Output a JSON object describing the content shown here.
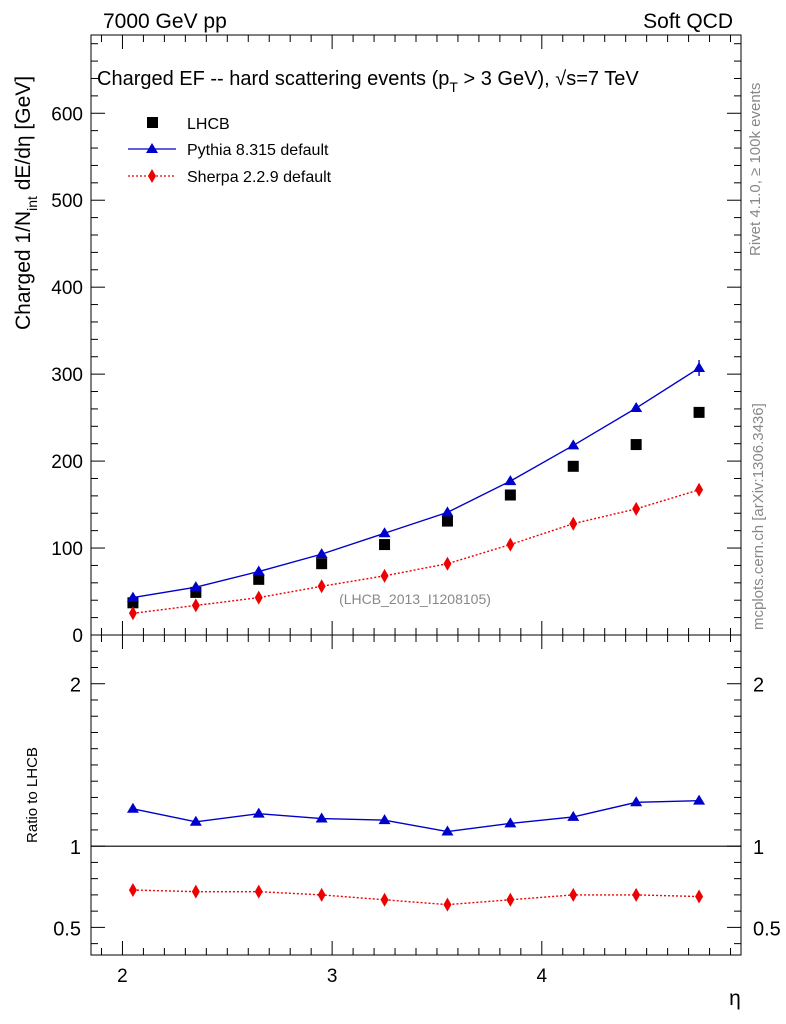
{
  "header": {
    "left": "7000 GeV pp",
    "right": "Soft QCD"
  },
  "side_labels": {
    "rivet": "Rivet 4.1.0, ≥ 100k events",
    "mcplots": "mcplots.cern.ch [arXiv:1306.3436]"
  },
  "colors": {
    "data": "#000000",
    "pythia": "#0000cc",
    "sherpa": "#ee0000",
    "watermark": "#888888"
  },
  "chart_data": [
    {
      "type": "scatter",
      "panel": "main",
      "title": "Charged EF -- hard scattering events (p",
      "title_subscript": "T",
      "title_tail": " > 3 GeV), √s=7 TeV",
      "watermark": "(LHCB_2013_I1208105)",
      "ylabel": "Charged 1/N",
      "ylabel_sub": "int",
      "ylabel_tail": "  dE/dη [GeV]",
      "xlabel": "η",
      "xlim": [
        1.85,
        4.95
      ],
      "ylim": [
        0,
        690
      ],
      "yticks": [
        0,
        100,
        200,
        300,
        400,
        500,
        600
      ],
      "xticks": [
        2,
        3,
        4
      ],
      "x": [
        2.05,
        2.35,
        2.65,
        2.95,
        3.25,
        3.55,
        3.85,
        4.15,
        4.45,
        4.75
      ],
      "series": [
        {
          "name": "LHCB",
          "key": "data",
          "style": "markers",
          "marker": "square",
          "values": [
            37,
            49,
            64,
            82,
            104,
            131,
            161,
            194,
            219,
            256
          ]
        },
        {
          "name": "Pythia 8.315 default",
          "key": "pythia",
          "style": "solid-line",
          "marker": "triangle",
          "values": [
            43,
            55,
            73,
            93,
            117,
            141,
            177,
            218,
            261,
            307
          ]
        },
        {
          "name": "Sherpa 2.2.9 default",
          "key": "sherpa",
          "style": "dotted-line",
          "marker": "diamond",
          "values": [
            25,
            34,
            43,
            56,
            68,
            82,
            104,
            128,
            145,
            167
          ]
        }
      ]
    },
    {
      "type": "line",
      "panel": "ratio",
      "ylabel": "Ratio to LHCB",
      "xlim": [
        1.85,
        4.95
      ],
      "ylim": [
        0.33,
        2.3
      ],
      "yticks": [
        0.5,
        1,
        2
      ],
      "x": [
        2.05,
        2.35,
        2.65,
        2.95,
        3.25,
        3.55,
        3.85,
        4.15,
        4.45,
        4.75
      ],
      "series": [
        {
          "name": "Pythia 8.315 default",
          "key": "pythia",
          "values": [
            1.23,
            1.15,
            1.2,
            1.17,
            1.16,
            1.09,
            1.14,
            1.18,
            1.27,
            1.28
          ]
        },
        {
          "name": "Sherpa 2.2.9 default",
          "key": "sherpa",
          "values": [
            0.73,
            0.72,
            0.72,
            0.7,
            0.67,
            0.64,
            0.67,
            0.7,
            0.7,
            0.69
          ]
        }
      ]
    }
  ]
}
